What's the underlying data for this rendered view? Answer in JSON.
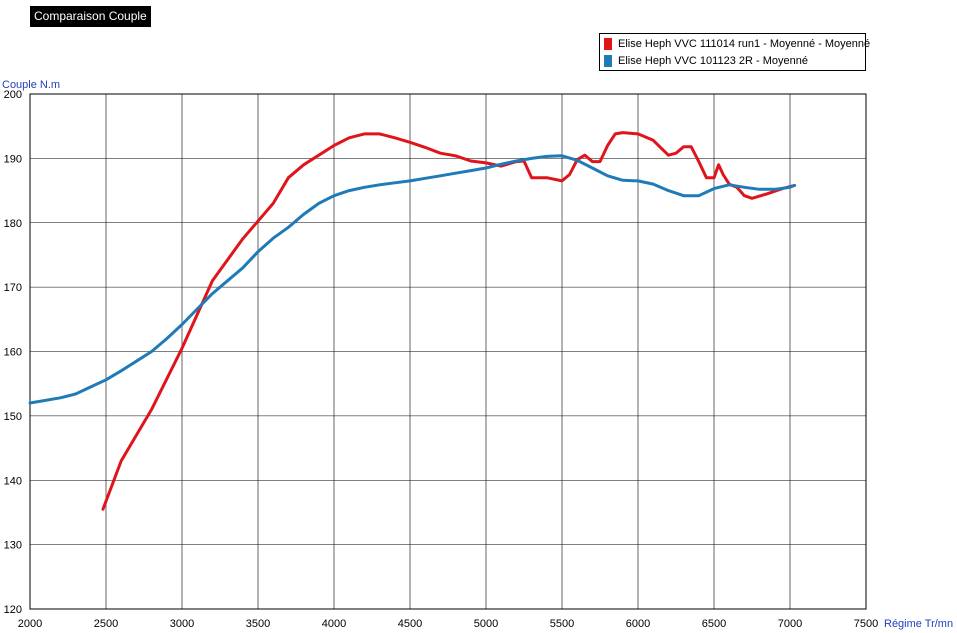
{
  "chart_data": {
    "type": "line",
    "title": "Comparaison Couple",
    "xlabel": "Régime Tr/mn",
    "ylabel": "Couple N.m",
    "xlim": [
      2000,
      7500
    ],
    "ylim": [
      120,
      200
    ],
    "xticks": [
      2000,
      2500,
      3000,
      3500,
      4000,
      4500,
      5000,
      5500,
      6000,
      6500,
      7000,
      7500
    ],
    "yticks": [
      120,
      130,
      140,
      150,
      160,
      170,
      180,
      190,
      200
    ],
    "grid": true,
    "legend": "top-right",
    "series": [
      {
        "name": "Elise Heph VVC 111014 run1 - Moyenné - Moyenné",
        "color": "#e0141b",
        "points": [
          [
            2480,
            135.5
          ],
          [
            2600,
            143
          ],
          [
            2800,
            151
          ],
          [
            3000,
            160.5
          ],
          [
            3200,
            171
          ],
          [
            3400,
            177.5
          ],
          [
            3600,
            183
          ],
          [
            3700,
            187
          ],
          [
            3800,
            189
          ],
          [
            3900,
            190.5
          ],
          [
            4000,
            192
          ],
          [
            4100,
            193.2
          ],
          [
            4200,
            193.8
          ],
          [
            4300,
            193.8
          ],
          [
            4400,
            193.2
          ],
          [
            4500,
            192.5
          ],
          [
            4600,
            191.7
          ],
          [
            4700,
            190.8
          ],
          [
            4800,
            190.4
          ],
          [
            4900,
            189.6
          ],
          [
            5000,
            189.3
          ],
          [
            5100,
            188.8
          ],
          [
            5200,
            189.5
          ],
          [
            5250,
            189.6
          ],
          [
            5300,
            187
          ],
          [
            5400,
            187
          ],
          [
            5500,
            186.5
          ],
          [
            5550,
            187.5
          ],
          [
            5600,
            189.8
          ],
          [
            5650,
            190.5
          ],
          [
            5700,
            189.5
          ],
          [
            5750,
            189.5
          ],
          [
            5800,
            192
          ],
          [
            5850,
            193.8
          ],
          [
            5900,
            194
          ],
          [
            6000,
            193.8
          ],
          [
            6100,
            192.8
          ],
          [
            6200,
            190.5
          ],
          [
            6250,
            190.8
          ],
          [
            6300,
            191.8
          ],
          [
            6350,
            191.8
          ],
          [
            6400,
            189.5
          ],
          [
            6450,
            187
          ],
          [
            6500,
            187
          ],
          [
            6530,
            189
          ],
          [
            6560,
            187.5
          ],
          [
            6600,
            186
          ],
          [
            6650,
            185.5
          ],
          [
            6700,
            184.2
          ],
          [
            6750,
            183.8
          ],
          [
            6850,
            184.5
          ],
          [
            6950,
            185.3
          ],
          [
            7030,
            185.8
          ]
        ]
      },
      {
        "name": "Elise Heph VVC 101123 2R - Moyenné",
        "color": "#1f7ab8",
        "points": [
          [
            2000,
            152
          ],
          [
            2200,
            152.8
          ],
          [
            2300,
            153.4
          ],
          [
            2400,
            154.5
          ],
          [
            2500,
            155.6
          ],
          [
            2600,
            157
          ],
          [
            2700,
            158.5
          ],
          [
            2800,
            160
          ],
          [
            2900,
            162
          ],
          [
            3000,
            164.2
          ],
          [
            3100,
            166.6
          ],
          [
            3200,
            169
          ],
          [
            3300,
            171
          ],
          [
            3400,
            173
          ],
          [
            3500,
            175.5
          ],
          [
            3600,
            177.6
          ],
          [
            3700,
            179.3
          ],
          [
            3800,
            181.3
          ],
          [
            3900,
            183
          ],
          [
            4000,
            184.2
          ],
          [
            4100,
            185
          ],
          [
            4200,
            185.5
          ],
          [
            4300,
            185.9
          ],
          [
            4400,
            186.2
          ],
          [
            4500,
            186.5
          ],
          [
            4600,
            186.9
          ],
          [
            4700,
            187.3
          ],
          [
            4800,
            187.7
          ],
          [
            4900,
            188.1
          ],
          [
            5000,
            188.5
          ],
          [
            5100,
            189.1
          ],
          [
            5200,
            189.6
          ],
          [
            5300,
            190
          ],
          [
            5400,
            190.3
          ],
          [
            5500,
            190.4
          ],
          [
            5600,
            189.7
          ],
          [
            5700,
            188.5
          ],
          [
            5800,
            187.3
          ],
          [
            5900,
            186.6
          ],
          [
            6000,
            186.5
          ],
          [
            6100,
            186
          ],
          [
            6200,
            185
          ],
          [
            6300,
            184.2
          ],
          [
            6400,
            184.2
          ],
          [
            6500,
            185.3
          ],
          [
            6600,
            185.9
          ],
          [
            6700,
            185.5
          ],
          [
            6800,
            185.2
          ],
          [
            6900,
            185.2
          ],
          [
            7000,
            185.5
          ],
          [
            7030,
            185.8
          ]
        ]
      }
    ]
  }
}
